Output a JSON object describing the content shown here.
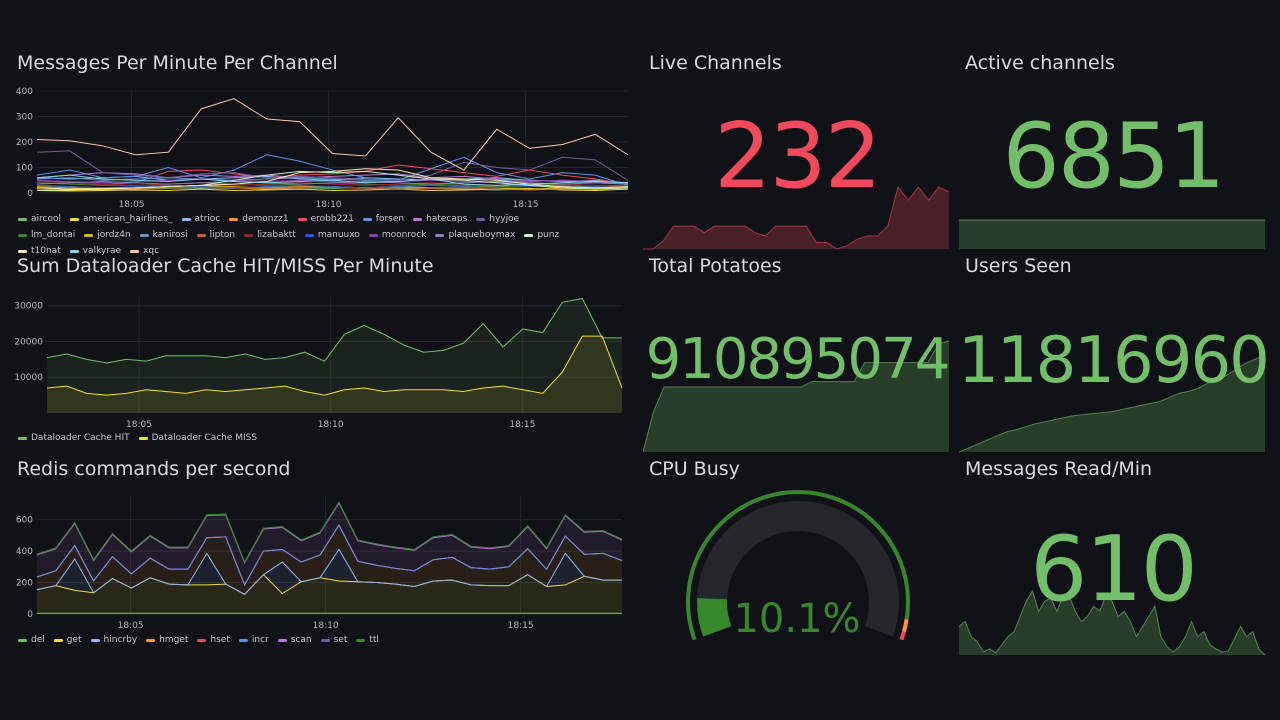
{
  "panels": {
    "messages_title": "Messages Per Minute Per Channel",
    "cache_title": "Sum Dataloader Cache HIT/MISS Per Minute",
    "redis_title": "Redis commands per second",
    "live_title": "Live Channels",
    "active_title": "Active channels",
    "potatoes_title": "Total Potatoes",
    "users_title": "Users Seen",
    "cpu_title": "CPU Busy",
    "read_title": "Messages Read/Min"
  },
  "stats": {
    "live": {
      "value": "232",
      "color": "#f2495c",
      "spark": [
        20,
        20,
        25,
        34,
        34,
        34,
        30,
        34,
        34,
        34,
        34,
        30,
        28,
        34,
        34,
        34,
        34,
        24,
        24,
        20,
        22,
        26,
        28,
        28,
        34,
        58,
        50,
        58,
        50,
        58,
        55
      ]
    },
    "active": {
      "value": "6851",
      "color": "#73bf69",
      "spark": [
        6851,
        6851,
        6851,
        6851
      ]
    },
    "potatoes": {
      "value": "910895074",
      "color": "#73bf69",
      "spark": [
        0,
        30,
        48,
        48,
        48,
        48,
        48,
        48,
        48,
        48,
        48,
        48,
        48,
        48,
        48,
        48,
        52,
        52,
        52,
        52,
        52,
        66,
        66,
        66,
        66,
        66,
        66,
        66,
        80,
        82
      ]
    },
    "users": {
      "value": "11816960",
      "color": "#73bf69",
      "spark": [
        0,
        4,
        8,
        12,
        16,
        20,
        22,
        25,
        28,
        30,
        32,
        34,
        36,
        37,
        38,
        39,
        40,
        42,
        44,
        46,
        48,
        50,
        54,
        58,
        60,
        63,
        68,
        72,
        76,
        82,
        88,
        92,
        96
      ]
    },
    "read": {
      "value": "610",
      "color": "#73bf69",
      "spark": [
        30,
        35,
        20,
        15,
        5,
        8,
        4,
        12,
        20,
        25,
        40,
        55,
        65,
        45,
        55,
        58,
        45,
        60,
        60,
        45,
        35,
        40,
        50,
        45,
        60,
        55,
        40,
        45,
        35,
        20,
        30,
        40,
        50,
        20,
        10,
        5,
        10,
        20,
        35,
        20,
        25,
        12,
        8,
        5,
        6,
        18,
        30,
        20,
        25,
        8,
        2
      ]
    },
    "cpu": {
      "value": "10.1%",
      "percent": 10.1,
      "color": "#37872d"
    }
  },
  "chart_data": [
    {
      "type": "line",
      "title": "Messages Per Minute Per Channel",
      "xlim_minutes_after_18": [
        2.6,
        17.6
      ],
      "ylim": [
        0,
        400
      ],
      "yticks": [
        0,
        100,
        200,
        300,
        400
      ],
      "xticks": [
        "18:05",
        "18:10",
        "18:15"
      ],
      "series": [
        {
          "name": "aircool",
          "color": "#73bf69",
          "values": [
            20,
            15,
            12,
            15,
            18,
            20,
            18,
            25,
            20,
            18,
            22,
            20,
            18,
            15,
            12,
            15,
            18,
            15,
            20
          ]
        },
        {
          "name": "american_hairlines_",
          "color": "#fade2a",
          "values": [
            10,
            8,
            10,
            12,
            10,
            15,
            10,
            12,
            15,
            10,
            12,
            15,
            10,
            12,
            15,
            18,
            12,
            10,
            15
          ]
        },
        {
          "name": "atrioc",
          "color": "#8ab8ff",
          "values": [
            60,
            55,
            60,
            65,
            50,
            55,
            60,
            65,
            55,
            50,
            60,
            55,
            50,
            55,
            60,
            50,
            45,
            50,
            40
          ]
        },
        {
          "name": "demonzz1",
          "color": "#ff9830",
          "values": [
            30,
            25,
            20,
            20,
            25,
            30,
            25,
            20,
            25,
            25,
            20,
            25,
            20,
            20,
            25,
            30,
            25,
            20,
            25
          ]
        },
        {
          "name": "erobb221",
          "color": "#f2495c",
          "values": [
            50,
            40,
            35,
            40,
            85,
            90,
            75,
            60,
            70,
            75,
            85,
            110,
            95,
            80,
            65,
            90,
            70,
            55,
            35
          ]
        },
        {
          "name": "forsen",
          "color": "#5794f2",
          "values": [
            70,
            90,
            60,
            65,
            100,
            60,
            90,
            150,
            125,
            90,
            60,
            50,
            95,
            140,
            80,
            55,
            80,
            70,
            30
          ]
        },
        {
          "name": "hatecaps",
          "color": "#b877d9",
          "values": [
            60,
            70,
            80,
            75,
            60,
            70,
            65,
            70,
            60,
            65,
            70,
            75,
            60,
            65,
            55,
            50,
            45,
            40,
            35
          ]
        },
        {
          "name": "hyyjoe",
          "color": "#705da0",
          "values": [
            160,
            165,
            80,
            70,
            60,
            75,
            80,
            60,
            65,
            60,
            55,
            50,
            70,
            120,
            100,
            90,
            140,
            130,
            50
          ]
        },
        {
          "name": "lm_dontai",
          "color": "#37872d",
          "values": [
            40,
            35,
            30,
            30,
            35,
            40,
            35,
            30,
            35,
            40,
            35,
            30,
            35,
            30,
            25,
            30,
            35,
            30,
            30
          ]
        },
        {
          "name": "jordz4n",
          "color": "#e0b400",
          "values": [
            25,
            20,
            15,
            20,
            25,
            30,
            20,
            15,
            20,
            25,
            20,
            25,
            30,
            25,
            20,
            15,
            20,
            25,
            20
          ]
        },
        {
          "name": "kanirosi",
          "color": "#5f95c8",
          "values": [
            55,
            60,
            50,
            55,
            60,
            55,
            50,
            55,
            60,
            55,
            50,
            45,
            50,
            55,
            50,
            45,
            50,
            45,
            40
          ]
        },
        {
          "name": "lipton",
          "color": "#c4622c",
          "values": [
            15,
            12,
            15,
            18,
            20,
            22,
            20,
            18,
            20,
            22,
            18,
            15,
            18,
            20,
            15,
            12,
            15,
            18,
            20
          ]
        },
        {
          "name": "lizabaktt",
          "color": "#9c2330",
          "values": [
            45,
            40,
            35,
            30,
            35,
            40,
            30,
            35,
            40,
            35,
            30,
            35,
            40,
            35,
            30,
            40,
            35,
            30,
            25
          ]
        },
        {
          "name": "manuuxo",
          "color": "#1f60c4",
          "values": [
            30,
            25,
            20,
            25,
            30,
            25,
            20,
            25,
            30,
            25,
            20,
            25,
            30,
            25,
            20,
            25,
            30,
            25,
            20
          ]
        },
        {
          "name": "moonrock",
          "color": "#8f3bb8",
          "values": [
            50,
            45,
            40,
            45,
            50,
            55,
            50,
            45,
            50,
            45,
            40,
            45,
            50,
            45,
            40,
            45,
            50,
            45,
            40
          ]
        },
        {
          "name": "plaqueboymax",
          "color": "#8b7bc7",
          "values": [
            35,
            40,
            45,
            40,
            35,
            40,
            45,
            40,
            35,
            40,
            45,
            40,
            35,
            40,
            45,
            40,
            35,
            40,
            35
          ]
        },
        {
          "name": "punz",
          "color": "#c8f2c2",
          "values": [
            10,
            12,
            15,
            20,
            25,
            30,
            50,
            70,
            85,
            80,
            85,
            70,
            55,
            50,
            40,
            30,
            20,
            15,
            20
          ]
        },
        {
          "name": "t10nat",
          "color": "#ffe6b3",
          "values": [
            20,
            15,
            18,
            20,
            25,
            30,
            35,
            45,
            80,
            85,
            95,
            90,
            60,
            55,
            50,
            35,
            25,
            20,
            25
          ]
        },
        {
          "name": "valkyrae",
          "color": "#8ad6ea",
          "values": [
            60,
            70,
            55,
            50,
            45,
            55,
            45,
            40,
            45,
            50,
            40,
            45,
            55,
            35,
            30,
            35,
            40,
            45,
            40
          ]
        },
        {
          "name": "xqc",
          "color": "#ffc6a8",
          "values": [
            210,
            205,
            185,
            150,
            160,
            330,
            370,
            290,
            280,
            155,
            145,
            295,
            160,
            90,
            250,
            175,
            190,
            230,
            150
          ]
        }
      ],
      "legend_placement": "bottom"
    },
    {
      "type": "area",
      "title": "Sum Dataloader Cache HIT/MISS Per Minute",
      "xlim_minutes_after_18": [
        2.6,
        17.6
      ],
      "ylim": [
        0,
        33000
      ],
      "yticks": [
        10000,
        20000,
        30000
      ],
      "xticks": [
        "18:05",
        "18:10",
        "18:15"
      ],
      "series": [
        {
          "name": "Dataloader Cache HIT",
          "color": "#73bf69",
          "values": [
            15500,
            16500,
            15000,
            14000,
            15000,
            14500,
            16000,
            16000,
            16000,
            15500,
            16500,
            15000,
            15500,
            17000,
            14500,
            22000,
            24500,
            22000,
            19000,
            17000,
            17500,
            19500,
            25000,
            18500,
            23500,
            22500,
            31000,
            32000,
            21000,
            21000
          ]
        },
        {
          "name": "Dataloader Cache MISS",
          "color": "#fade2a",
          "values": [
            7000,
            7500,
            5500,
            5000,
            5500,
            6500,
            6000,
            5500,
            6500,
            6000,
            6500,
            7000,
            7500,
            6000,
            5000,
            6500,
            7000,
            6000,
            6500,
            6500,
            6500,
            6000,
            7000,
            7500,
            6500,
            5500,
            11500,
            21500,
            21500,
            7000
          ]
        }
      ],
      "legend_placement": "bottom"
    },
    {
      "type": "area",
      "stacked": true,
      "title": "Redis commands per second",
      "xlim_minutes_after_18": [
        2.6,
        17.6
      ],
      "ylim": [
        0,
        750
      ],
      "yticks": [
        0,
        200,
        400,
        600
      ],
      "xticks": [
        "18:05",
        "18:10",
        "18:15"
      ],
      "series": [
        {
          "name": "del",
          "color": "#73bf69",
          "values": [
            5,
            5,
            5,
            5,
            5,
            5,
            5,
            5,
            5,
            5,
            5,
            5,
            5,
            5,
            5,
            5,
            5,
            5,
            5,
            5,
            5,
            5,
            5,
            5,
            5,
            5,
            5,
            5,
            5,
            5,
            5,
            5
          ]
        },
        {
          "name": "get",
          "color": "#fade2a",
          "values": [
            150,
            175,
            145,
            130,
            220,
            160,
            225,
            185,
            180,
            180,
            185,
            120,
            245,
            125,
            200,
            225,
            205,
            200,
            195,
            185,
            170,
            205,
            210,
            180,
            175,
            175,
            245,
            170,
            180,
            235,
            210,
            210
          ]
        },
        {
          "name": "hincrby",
          "color": "#8ab8ff",
          "values": [
            0,
            0,
            200,
            0,
            0,
            0,
            0,
            0,
            0,
            200,
            0,
            0,
            0,
            200,
            0,
            0,
            200,
            0,
            0,
            0,
            0,
            0,
            0,
            0,
            0,
            0,
            0,
            0,
            200,
            0,
            0,
            0
          ]
        },
        {
          "name": "hmget",
          "color": "#ff9830",
          "values": [
            80,
            95,
            85,
            75,
            140,
            90,
            125,
            95,
            100,
            100,
            300,
            60,
            150,
            80,
            125,
            145,
            155,
            130,
            110,
            100,
            100,
            135,
            145,
            110,
            105,
            120,
            165,
            110,
            110,
            140,
            170,
            125
          ]
        },
        {
          "name": "hset",
          "color": "#f2495c",
          "values": [
            0,
            0,
            0,
            0,
            0,
            0,
            0,
            0,
            0,
            0,
            0,
            0,
            0,
            0,
            0,
            0,
            0,
            0,
            0,
            0,
            0,
            0,
            0,
            0,
            0,
            0,
            0,
            0,
            0,
            0,
            0,
            0
          ]
        },
        {
          "name": "incr",
          "color": "#5794f2",
          "values": [
            0,
            0,
            0,
            0,
            0,
            0,
            0,
            0,
            0,
            0,
            0,
            0,
            0,
            0,
            0,
            0,
            0,
            0,
            0,
            0,
            0,
            0,
            0,
            0,
            0,
            0,
            0,
            0,
            0,
            0,
            0,
            0
          ]
        },
        {
          "name": "scan",
          "color": "#b877d9",
          "values": [
            140,
            140,
            140,
            130,
            140,
            140,
            140,
            135,
            135,
            140,
            140,
            140,
            140,
            140,
            135,
            140,
            140,
            130,
            130,
            130,
            130,
            140,
            140,
            130,
            130,
            130,
            140,
            130,
            130,
            140,
            140,
            130
          ]
        },
        {
          "name": "set",
          "color": "#705da0",
          "values": [
            5,
            5,
            5,
            5,
            5,
            5,
            5,
            5,
            5,
            5,
            5,
            5,
            5,
            5,
            5,
            5,
            5,
            5,
            5,
            5,
            5,
            5,
            5,
            5,
            5,
            5,
            5,
            5,
            5,
            5,
            5,
            5
          ]
        },
        {
          "name": "ttl",
          "color": "#37872d",
          "values": [
            0,
            0,
            0,
            0,
            0,
            0,
            0,
            0,
            0,
            0,
            0,
            0,
            0,
            0,
            0,
            0,
            0,
            0,
            0,
            0,
            0,
            0,
            0,
            0,
            0,
            0,
            0,
            0,
            0,
            0,
            0,
            0
          ]
        }
      ],
      "legend_placement": "bottom"
    }
  ]
}
